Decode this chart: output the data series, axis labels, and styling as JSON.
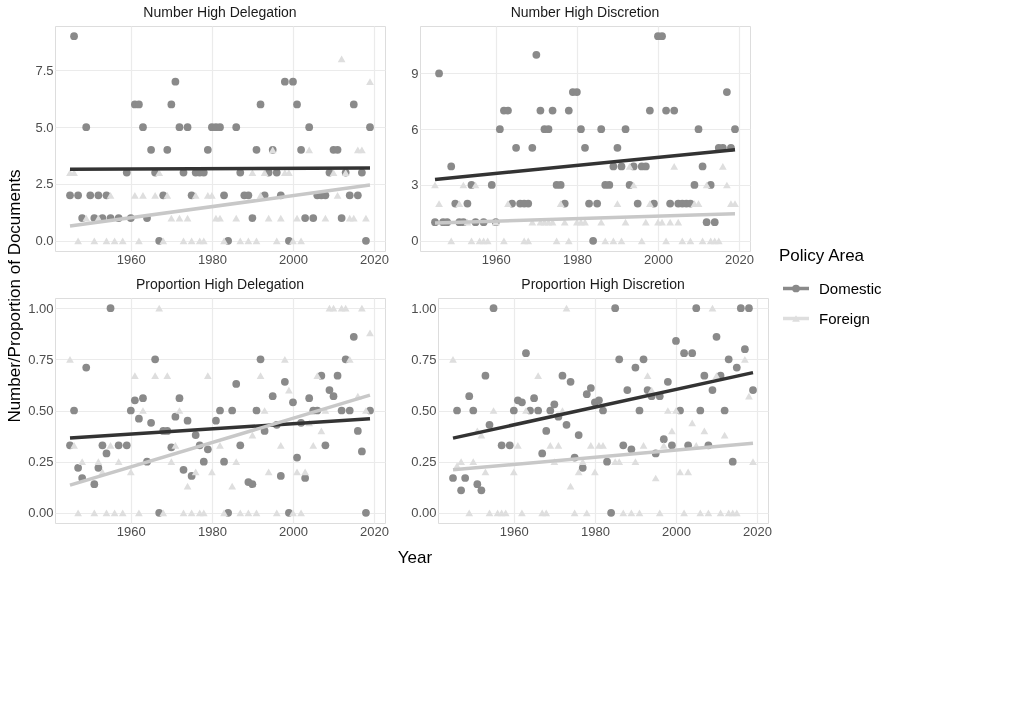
{
  "chart_data": [
    {
      "type": "scatter",
      "title": "Number High Delegation",
      "ylabel": "Number/Proportion of Documents",
      "xlabel": "Year",
      "legend_title": "Policy Area",
      "legend": "right",
      "xlim": [
        1941.3,
        2022.7
      ],
      "xticks": [
        1960,
        1980,
        2000,
        2020
      ],
      "ylim": [
        -0.45,
        9.45
      ],
      "yticks": [
        {
          "value": 0,
          "label": "0.0"
        },
        {
          "value": 2.5,
          "label": "2.5"
        },
        {
          "value": 5,
          "label": "5.0"
        },
        {
          "value": 7.5,
          "label": "7.5"
        }
      ],
      "grid": true,
      "series": [
        {
          "name": "Domestic",
          "type": "scatter",
          "marker": "circle",
          "color": "#8a8a8a",
          "x": [
            1945,
            1946,
            1947,
            1948,
            1949,
            1950,
            1951,
            1952,
            1953,
            1954,
            1955,
            1957,
            1959,
            1960,
            1961,
            1962,
            1963,
            1964,
            1965,
            1966,
            1967,
            1968,
            1969,
            1970,
            1971,
            1972,
            1973,
            1974,
            1975,
            1976,
            1977,
            1978,
            1979,
            1980,
            1981,
            1982,
            1983,
            1984,
            1986,
            1987,
            1988,
            1989,
            1990,
            1991,
            1992,
            1993,
            1994,
            1995,
            1996,
            1997,
            1998,
            1999,
            2000,
            2001,
            2002,
            2003,
            2004,
            2005,
            2006,
            2007,
            2008,
            2009,
            2010,
            2011,
            2012,
            2013,
            2014,
            2015,
            2016,
            2017,
            2018,
            2019
          ],
          "values": [
            2,
            9,
            2,
            1,
            5,
            2,
            1,
            2,
            1,
            2,
            1,
            1,
            3,
            1,
            6,
            6,
            5,
            1,
            4,
            3,
            0,
            2,
            4,
            6,
            7,
            5,
            3,
            5,
            2,
            3,
            3,
            3,
            4,
            5,
            5,
            5,
            2,
            0,
            5,
            3,
            2,
            2,
            1,
            4,
            6,
            2,
            3,
            4,
            3,
            2,
            7,
            0,
            7,
            6,
            4,
            1,
            5,
            1,
            2,
            2,
            2,
            3,
            4,
            4,
            1,
            3,
            2,
            6,
            2,
            3,
            0,
            5
          ]
        },
        {
          "name": "Foreign",
          "type": "scatter",
          "marker": "triangle",
          "color": "#dedede",
          "x": [
            1945,
            1946,
            1947,
            1949,
            1951,
            1952,
            1954,
            1955,
            1956,
            1957,
            1958,
            1961,
            1962,
            1963,
            1966,
            1967,
            1968,
            1969,
            1970,
            1972,
            1973,
            1974,
            1975,
            1976,
            1977,
            1978,
            1979,
            1980,
            1981,
            1982,
            1983,
            1986,
            1987,
            1989,
            1990,
            1991,
            1992,
            1993,
            1994,
            1995,
            1996,
            1997,
            1998,
            1999,
            2000,
            2001,
            2002,
            2004,
            2008,
            2010,
            2011,
            2012,
            2013,
            2014,
            2015,
            2016,
            2017,
            2018,
            2019
          ],
          "values": [
            3,
            3,
            0,
            1,
            0,
            1,
            0,
            2,
            0,
            null,
            0,
            2,
            0,
            2,
            2,
            3,
            0,
            2,
            1,
            1,
            0,
            1,
            0,
            2,
            0,
            0,
            2,
            2,
            1,
            1,
            0,
            1,
            0,
            0,
            3,
            0,
            2,
            3,
            1,
            4,
            0,
            1,
            3,
            3,
            0,
            1,
            0,
            4,
            1,
            3,
            2,
            8,
            3,
            1,
            1,
            4,
            4,
            1,
            7
          ]
        },
        {
          "type": "line",
          "color": "#333333",
          "x": [
            1945,
            2019
          ],
          "values": [
            3.15,
            3.2
          ]
        },
        {
          "type": "line",
          "color": "#c8c8c8",
          "x": [
            1945,
            2019
          ],
          "values": [
            0.65,
            2.45
          ]
        }
      ]
    },
    {
      "type": "scatter",
      "title": "Number High Discretion",
      "xlim": [
        1941.3,
        2022.7
      ],
      "xticks": [
        1960,
        1980,
        2000,
        2020
      ],
      "ylim": [
        -0.55,
        11.55
      ],
      "yticks": [
        0,
        3,
        6,
        9
      ],
      "grid": true,
      "series": [
        {
          "type": "scatter",
          "marker": "circle",
          "color": "#8a8a8a",
          "x": [
            1945,
            1946,
            1947,
            1948,
            1949,
            1950,
            1951,
            1952,
            1953,
            1954,
            1955,
            1957,
            1959,
            1960,
            1961,
            1962,
            1963,
            1964,
            1965,
            1966,
            1967,
            1968,
            1969,
            1970,
            1971,
            1972,
            1973,
            1974,
            1975,
            1976,
            1977,
            1978,
            1979,
            1980,
            1981,
            1982,
            1983,
            1984,
            1985,
            1986,
            1987,
            1988,
            1989,
            1990,
            1991,
            1992,
            1993,
            1994,
            1995,
            1996,
            1997,
            1998,
            1999,
            2000,
            2001,
            2002,
            2003,
            2004,
            2005,
            2006,
            2007,
            2008,
            2009,
            2010,
            2011,
            2012,
            2013,
            2014,
            2015,
            2016,
            2017,
            2018,
            2019
          ],
          "values": [
            1,
            9,
            1,
            1,
            4,
            2,
            1,
            1,
            2,
            3,
            1,
            1,
            3,
            1,
            6,
            7,
            7,
            2,
            5,
            2,
            2,
            2,
            5,
            10,
            7,
            6,
            6,
            7,
            3,
            3,
            2,
            7,
            8,
            8,
            6,
            5,
            2,
            0,
            2,
            6,
            3,
            3,
            4,
            5,
            4,
            6,
            3,
            4,
            2,
            4,
            4,
            7,
            2,
            11,
            11,
            7,
            2,
            7,
            2,
            2,
            2,
            2,
            3,
            6,
            4,
            1,
            3,
            1,
            5,
            5,
            8,
            5,
            6
          ]
        },
        {
          "type": "scatter",
          "marker": "triangle",
          "color": "#dedede",
          "x": [
            1945,
            1946,
            1947,
            1949,
            1951,
            1952,
            1953,
            1954,
            1955,
            1956,
            1957,
            1958,
            1960,
            1962,
            1963,
            1967,
            1968,
            1969,
            1971,
            1972,
            1973,
            1974,
            1975,
            1976,
            1977,
            1978,
            1980,
            1981,
            1982,
            1986,
            1987,
            1989,
            1990,
            1991,
            1992,
            1993,
            1994,
            1996,
            1997,
            1998,
            2000,
            2001,
            2002,
            2003,
            2004,
            2005,
            2006,
            2008,
            2009,
            2010,
            2011,
            2012,
            2013,
            2014,
            2015,
            2016,
            2017,
            2018,
            2019
          ],
          "values": [
            3,
            2,
            null,
            0,
            2,
            3,
            1,
            0,
            3,
            0,
            0,
            0,
            1,
            0,
            2,
            0,
            0,
            1,
            1,
            1,
            1,
            1,
            0,
            2,
            1,
            0,
            1,
            1,
            1,
            1,
            0,
            0,
            2,
            0,
            1,
            4,
            3,
            0,
            1,
            2,
            1,
            1,
            0,
            1,
            4,
            1,
            0,
            0,
            2,
            2,
            0,
            3,
            0,
            0,
            0,
            4,
            3,
            2,
            2
          ]
        },
        {
          "type": "line",
          "color": "#333333",
          "x": [
            1945,
            2019
          ],
          "values": [
            3.3,
            4.9
          ]
        },
        {
          "type": "line",
          "color": "#c8c8c8",
          "x": [
            1945,
            2019
          ],
          "values": [
            0.95,
            1.45
          ]
        }
      ]
    },
    {
      "type": "scatter",
      "title": "Proportion High Delegation",
      "xlim": [
        1941.3,
        2022.7
      ],
      "xticks": [
        1960,
        1980,
        2000,
        2020
      ],
      "ylim": [
        -0.05,
        1.05
      ],
      "yticks": [
        {
          "value": 0,
          "label": "0.00"
        },
        {
          "value": 0.25,
          "label": "0.25"
        },
        {
          "value": 0.5,
          "label": "0.50"
        },
        {
          "value": 0.75,
          "label": "0.75"
        },
        {
          "value": 1,
          "label": "1.00"
        }
      ],
      "grid": true,
      "series": [
        {
          "type": "scatter",
          "marker": "circle",
          "color": "#8a8a8a",
          "x": [
            1945,
            1946,
            1947,
            1948,
            1949,
            1951,
            1952,
            1953,
            1954,
            1955,
            1957,
            1959,
            1960,
            1961,
            1962,
            1963,
            1964,
            1965,
            1966,
            1967,
            1968,
            1969,
            1970,
            1971,
            1972,
            1973,
            1974,
            1975,
            1976,
            1977,
            1978,
            1979,
            1981,
            1982,
            1983,
            1984,
            1985,
            1986,
            1987,
            1989,
            1990,
            1991,
            1992,
            1993,
            1995,
            1996,
            1997,
            1998,
            1999,
            2000,
            2001,
            2002,
            2003,
            2004,
            2005,
            2006,
            2007,
            2008,
            2009,
            2010,
            2011,
            2012,
            2013,
            2014,
            2015,
            2016,
            2017,
            2018,
            2019
          ],
          "values": [
            0.33,
            0.5,
            0.22,
            0.17,
            0.71,
            0.14,
            0.22,
            0.33,
            0.29,
            1,
            0.33,
            0.33,
            0.5,
            0.55,
            0.46,
            0.56,
            0.25,
            0.44,
            0.75,
            0,
            0.4,
            0.4,
            0.32,
            0.47,
            0.56,
            0.21,
            0.45,
            0.18,
            0.38,
            0.33,
            0.25,
            0.31,
            0.45,
            0.5,
            0.25,
            0,
            0.5,
            0.63,
            0.33,
            0.15,
            0.14,
            0.5,
            0.75,
            0.4,
            0.57,
            0.43,
            0.18,
            0.64,
            0,
            0.54,
            0.27,
            0.44,
            0.17,
            0.56,
            0.5,
            0.5,
            0.67,
            0.33,
            0.6,
            0.57,
            0.67,
            0.5,
            0.75,
            0.5,
            0.86,
            0.4,
            0.3,
            0,
            0.5
          ]
        },
        {
          "type": "scatter",
          "marker": "triangle",
          "color": "#dedede",
          "x": [
            1945,
            1946,
            1947,
            1948,
            1951,
            1952,
            1953,
            1954,
            1955,
            1956,
            1957,
            1958,
            1960,
            1961,
            1962,
            1963,
            1966,
            1967,
            1968,
            1969,
            1970,
            1971,
            1972,
            1973,
            1974,
            1975,
            1976,
            1977,
            1978,
            1979,
            1980,
            1982,
            1983,
            1985,
            1986,
            1987,
            1989,
            1990,
            1991,
            1992,
            1993,
            1994,
            1996,
            1997,
            1998,
            1999,
            2000,
            2001,
            2002,
            2003,
            2004,
            2005,
            2006,
            2007,
            2008,
            2009,
            2010,
            2012,
            2013,
            2014,
            2016,
            2017,
            2018,
            2019
          ],
          "values": [
            0.75,
            0.33,
            0,
            0.25,
            0,
            0.25,
            0.2,
            0,
            0.33,
            0,
            0.25,
            0,
            0.2,
            0.67,
            0,
            0.5,
            0.67,
            1,
            0,
            0.67,
            0.25,
            0.33,
            0.5,
            0,
            0.13,
            0,
            0.2,
            0,
            0,
            0.67,
            0.2,
            0.33,
            0,
            0.13,
            0.25,
            0,
            0,
            0.38,
            0,
            0.67,
            0.5,
            0.2,
            0,
            0.33,
            0.75,
            0.6,
            0,
            0.2,
            0,
            0.2,
            0.44,
            0.33,
            0.67,
            0.4,
            0.5,
            1,
            1,
            1,
            1,
            0.75,
            0.57,
            1,
            0.5,
            0.88
          ]
        },
        {
          "type": "line",
          "color": "#333333",
          "x": [
            1945,
            2019
          ],
          "values": [
            0.365,
            0.46
          ]
        },
        {
          "type": "line",
          "color": "#c8c8c8",
          "x": [
            1945,
            2019
          ],
          "values": [
            0.135,
            0.575
          ]
        }
      ]
    },
    {
      "type": "scatter",
      "title": "Proportion High Discretion",
      "xlim": [
        1941.3,
        2022.7
      ],
      "xticks": [
        1960,
        1980,
        2000,
        2020
      ],
      "ylim": [
        -0.05,
        1.05
      ],
      "yticks": [
        {
          "value": 0,
          "label": "0.00"
        },
        {
          "value": 0.25,
          "label": "0.25"
        },
        {
          "value": 0.5,
          "label": "0.50"
        },
        {
          "value": 0.75,
          "label": "0.75"
        },
        {
          "value": 1,
          "label": "1.00"
        }
      ],
      "grid": true,
      "series": [
        {
          "type": "scatter",
          "marker": "circle",
          "color": "#8a8a8a",
          "x": [
            1945,
            1946,
            1947,
            1948,
            1949,
            1950,
            1951,
            1952,
            1953,
            1954,
            1955,
            1957,
            1959,
            1960,
            1961,
            1962,
            1963,
            1964,
            1965,
            1966,
            1967,
            1968,
            1969,
            1970,
            1971,
            1972,
            1973,
            1974,
            1975,
            1976,
            1977,
            1978,
            1979,
            1980,
            1981,
            1982,
            1983,
            1984,
            1985,
            1986,
            1987,
            1988,
            1989,
            1990,
            1991,
            1992,
            1993,
            1994,
            1995,
            1996,
            1997,
            1998,
            1999,
            2000,
            2001,
            2002,
            2003,
            2004,
            2005,
            2006,
            2007,
            2008,
            2009,
            2010,
            2011,
            2012,
            2013,
            2014,
            2015,
            2016,
            2017,
            2018,
            2019
          ],
          "values": [
            0.17,
            0.5,
            0.11,
            0.17,
            0.57,
            0.5,
            0.14,
            0.11,
            0.67,
            0.43,
            1,
            0.33,
            0.33,
            0.5,
            0.55,
            0.54,
            0.78,
            0.5,
            0.56,
            0.5,
            0.29,
            0.4,
            0.5,
            0.53,
            0.47,
            0.67,
            0.43,
            0.64,
            0.27,
            0.38,
            0.22,
            0.58,
            0.61,
            0.54,
            0.55,
            0.5,
            0.25,
            0,
            1,
            0.75,
            0.33,
            0.6,
            0.31,
            0.71,
            0.5,
            0.75,
            0.6,
            0.57,
            0.29,
            0.57,
            0.36,
            0.64,
            0.33,
            0.84,
            0.5,
            0.78,
            0.33,
            0.78,
            1,
            0.5,
            0.67,
            0.33,
            0.6,
            0.86,
            0.67,
            0.5,
            0.75,
            0.25,
            0.71,
            1,
            0.8,
            1,
            0.6
          ]
        },
        {
          "type": "scatter",
          "marker": "triangle",
          "color": "#dedede",
          "x": [
            1945,
            1946,
            1947,
            1949,
            1950,
            1951,
            1952,
            1953,
            1954,
            1955,
            1956,
            1957,
            1958,
            1960,
            1961,
            1962,
            1963,
            1966,
            1967,
            1968,
            1969,
            1970,
            1971,
            1972,
            1973,
            1974,
            1975,
            1976,
            1977,
            1978,
            1979,
            1980,
            1981,
            1982,
            1985,
            1986,
            1987,
            1989,
            1990,
            1991,
            1992,
            1993,
            1994,
            1995,
            1996,
            1997,
            1998,
            1999,
            2000,
            2001,
            2002,
            2003,
            2004,
            2005,
            2006,
            2007,
            2008,
            2009,
            2010,
            2011,
            2012,
            2013,
            2014,
            2015,
            2017,
            2018,
            2019
          ],
          "values": [
            0.75,
            0.23,
            0.25,
            0,
            0.25,
            0.4,
            0.38,
            0.2,
            0,
            0.5,
            0,
            0,
            0,
            0.2,
            0.33,
            0,
            0.5,
            0.67,
            0,
            0,
            0.33,
            0.25,
            0.33,
            0.5,
            1,
            0.13,
            0,
            0.2,
            0.25,
            0,
            0.33,
            0.2,
            0.33,
            0.33,
            0.25,
            0.25,
            0,
            0,
            0.25,
            0,
            0.33,
            0.67,
            0.6,
            0.17,
            0,
            0.33,
            0.5,
            0.4,
            0.5,
            0.2,
            0,
            0.2,
            0.44,
            0.33,
            0,
            0.4,
            0,
            1,
            0.67,
            0,
            0.38,
            0,
            0,
            0,
            0.75,
            0.57,
            0.25
          ]
        },
        {
          "type": "line",
          "color": "#333333",
          "x": [
            1945,
            2019
          ],
          "values": [
            0.365,
            0.685
          ]
        },
        {
          "type": "line",
          "color": "#c8c8c8",
          "x": [
            1945,
            2019
          ],
          "values": [
            0.21,
            0.34
          ]
        }
      ]
    }
  ]
}
